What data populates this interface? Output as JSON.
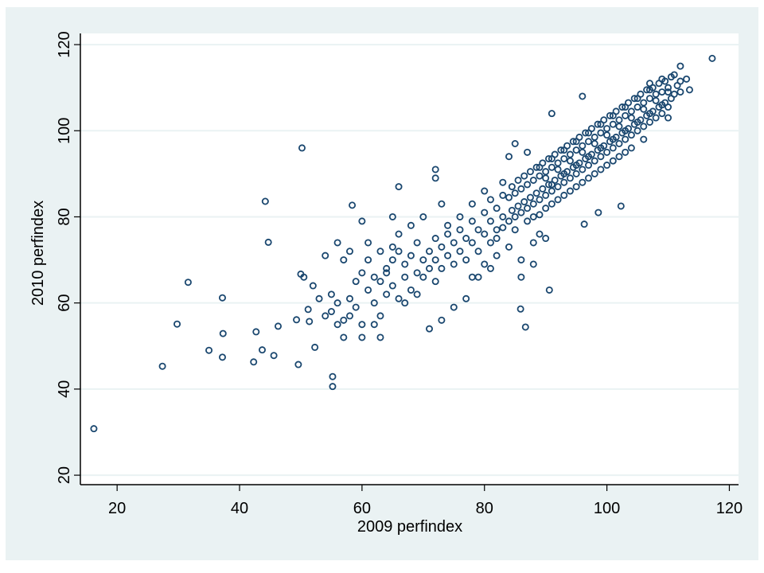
{
  "chart_data": {
    "type": "scatter",
    "title": "",
    "xlabel": "2009 perfindex",
    "ylabel": "2010 perfindex",
    "xlim": [
      14,
      121.5
    ],
    "ylim": [
      17.8,
      122.6
    ],
    "xticks": [
      20,
      40,
      60,
      80,
      100,
      120
    ],
    "yticks": [
      20,
      40,
      60,
      80,
      100,
      120
    ],
    "xtick_labels": [
      "20",
      "40",
      "60",
      "80",
      "100",
      "120"
    ],
    "ytick_labels": [
      "20",
      "40",
      "60",
      "80",
      "100",
      "120"
    ],
    "grid": "horizontal",
    "marker": "hollow-circle",
    "colors": {
      "marker": "#1a476f",
      "background": "#eaf2f3",
      "plot": "#ffffff",
      "grid": "#eaf2f3"
    },
    "points": [
      [
        16.2,
        30.8
      ],
      [
        27.4,
        45.3
      ],
      [
        31.6,
        64.8
      ],
      [
        29.8,
        55.1
      ],
      [
        35.0,
        49.0
      ],
      [
        37.2,
        61.2
      ],
      [
        37.3,
        52.9
      ],
      [
        37.2,
        47.4
      ],
      [
        42.7,
        53.3
      ],
      [
        42.3,
        46.3
      ],
      [
        43.7,
        49.1
      ],
      [
        44.2,
        83.6
      ],
      [
        44.7,
        74.1
      ],
      [
        45.6,
        47.8
      ],
      [
        46.3,
        54.6
      ],
      [
        50.2,
        96.0
      ],
      [
        49.6,
        45.7
      ],
      [
        49.3,
        56.1
      ],
      [
        50.0,
        66.7
      ],
      [
        50.5,
        66.0
      ],
      [
        51.2,
        58.5
      ],
      [
        51.4,
        55.7
      ],
      [
        52.3,
        49.7
      ],
      [
        55.2,
        42.9
      ],
      [
        55.2,
        40.6
      ],
      [
        58.4,
        82.7
      ],
      [
        117.2,
        116.8
      ],
      [
        85.9,
        58.6
      ],
      [
        86.7,
        54.4
      ],
      [
        90.6,
        63.0
      ],
      [
        98.6,
        81.0
      ],
      [
        102.3,
        82.5
      ],
      [
        96.3,
        78.3
      ],
      [
        60,
        67
      ],
      [
        61,
        63
      ],
      [
        62,
        66
      ],
      [
        62,
        60
      ],
      [
        63,
        65
      ],
      [
        64,
        68
      ],
      [
        64,
        62
      ],
      [
        65,
        70
      ],
      [
        65,
        64
      ],
      [
        66,
        61
      ],
      [
        66,
        72
      ],
      [
        67,
        66
      ],
      [
        67,
        69
      ],
      [
        68,
        63
      ],
      [
        68,
        71
      ],
      [
        69,
        67
      ],
      [
        69,
        74
      ],
      [
        70,
        70
      ],
      [
        70,
        66
      ],
      [
        71,
        72
      ],
      [
        71,
        68
      ],
      [
        72,
        75
      ],
      [
        72,
        70
      ],
      [
        72,
        65
      ],
      [
        73,
        73
      ],
      [
        73,
        68
      ],
      [
        74,
        76
      ],
      [
        74,
        71
      ],
      [
        74,
        78
      ],
      [
        75,
        74
      ],
      [
        75,
        69
      ],
      [
        76,
        77
      ],
      [
        76,
        72
      ],
      [
        76,
        80
      ],
      [
        77,
        75
      ],
      [
        77,
        70
      ],
      [
        78,
        79
      ],
      [
        78,
        74
      ],
      [
        78,
        83
      ],
      [
        79,
        77
      ],
      [
        79,
        72
      ],
      [
        80,
        81
      ],
      [
        80,
        76
      ],
      [
        80,
        86
      ],
      [
        81,
        79
      ],
      [
        81,
        84
      ],
      [
        82,
        82
      ],
      [
        82,
        77
      ],
      [
        83,
        85
      ],
      [
        83,
        80
      ],
      [
        83,
        88
      ],
      [
        73,
        83
      ],
      [
        72,
        91
      ],
      [
        72,
        89
      ],
      [
        66,
        87
      ],
      [
        65,
        80
      ],
      [
        60,
        79
      ],
      [
        61,
        74
      ],
      [
        58,
        72
      ],
      [
        57,
        70
      ],
      [
        58,
        61
      ],
      [
        57,
        56
      ],
      [
        55,
        58
      ],
      [
        54,
        71
      ],
      [
        56,
        74
      ],
      [
        59,
        59
      ],
      [
        60,
        55
      ],
      [
        60,
        52
      ],
      [
        63,
        52
      ],
      [
        62,
        55
      ],
      [
        63,
        57
      ],
      [
        64,
        67
      ],
      [
        67,
        60
      ],
      [
        69,
        62
      ],
      [
        71,
        54
      ],
      [
        73,
        56
      ],
      [
        75,
        59
      ],
      [
        77,
        61
      ],
      [
        78,
        66
      ],
      [
        79,
        66
      ],
      [
        80,
        69
      ],
      [
        81,
        68
      ],
      [
        82,
        71
      ],
      [
        84,
        73
      ],
      [
        86,
        66
      ],
      [
        86,
        70
      ],
      [
        88,
        69
      ],
      [
        88,
        74
      ],
      [
        89,
        76
      ],
      [
        90,
        75
      ],
      [
        84,
        94
      ],
      [
        85,
        97
      ],
      [
        87,
        95
      ],
      [
        91,
        104
      ],
      [
        96,
        108
      ],
      [
        57,
        52
      ],
      [
        58,
        57
      ],
      [
        56,
        60
      ],
      [
        59,
        65
      ],
      [
        61,
        70
      ],
      [
        63,
        72
      ],
      [
        65,
        73
      ],
      [
        66,
        76
      ],
      [
        68,
        78
      ],
      [
        70,
        80
      ],
      [
        53,
        61
      ],
      [
        54,
        57
      ],
      [
        56,
        55
      ],
      [
        52,
        64
      ],
      [
        55,
        62
      ],
      [
        112,
        115
      ],
      [
        111,
        113
      ],
      [
        113,
        112
      ],
      [
        113.5,
        109.5
      ],
      [
        110,
        103
      ],
      [
        84,
        79
      ],
      [
        84.5,
        81.5
      ],
      [
        84,
        84.5
      ],
      [
        84.5,
        87
      ],
      [
        85,
        80
      ],
      [
        85.5,
        82.5
      ],
      [
        85,
        85.5
      ],
      [
        85.5,
        88.5
      ],
      [
        86,
        81
      ],
      [
        86.5,
        83.5
      ],
      [
        86,
        86.5
      ],
      [
        86.5,
        89.5
      ],
      [
        87,
        82
      ],
      [
        87.5,
        84.5
      ],
      [
        87,
        87.5
      ],
      [
        87.5,
        90.5
      ],
      [
        88,
        83
      ],
      [
        88.5,
        85.5
      ],
      [
        88,
        88.5
      ],
      [
        88.5,
        91.5
      ],
      [
        89,
        84
      ],
      [
        89.5,
        86.5
      ],
      [
        89,
        89.5
      ],
      [
        89.5,
        92.5
      ],
      [
        90,
        85
      ],
      [
        90.5,
        87.5
      ],
      [
        90,
        90.5
      ],
      [
        90.5,
        93.5
      ],
      [
        91,
        86
      ],
      [
        91.5,
        88.5
      ],
      [
        91,
        91.5
      ],
      [
        91.5,
        94.5
      ],
      [
        92,
        87
      ],
      [
        92.5,
        89.5
      ],
      [
        92,
        92.5
      ],
      [
        92.5,
        95.5
      ],
      [
        93,
        88
      ],
      [
        93.5,
        90.5
      ],
      [
        93,
        93.5
      ],
      [
        93.5,
        96.5
      ],
      [
        94,
        89
      ],
      [
        94.5,
        91.5
      ],
      [
        94,
        94.5
      ],
      [
        94.5,
        97.5
      ],
      [
        95,
        90
      ],
      [
        95.5,
        92.5
      ],
      [
        95,
        95.5
      ],
      [
        95.5,
        98.5
      ],
      [
        96,
        91
      ],
      [
        96.5,
        93.5
      ],
      [
        96,
        96.5
      ],
      [
        96.5,
        99.5
      ],
      [
        97,
        92
      ],
      [
        97.5,
        94.5
      ],
      [
        97,
        97.5
      ],
      [
        97.5,
        100.5
      ],
      [
        98,
        93
      ],
      [
        98.5,
        95.5
      ],
      [
        98,
        98.5
      ],
      [
        98.5,
        101.5
      ],
      [
        99,
        94
      ],
      [
        99.5,
        96.5
      ],
      [
        99,
        99.5
      ],
      [
        99.5,
        102.5
      ],
      [
        100,
        95
      ],
      [
        100.5,
        97.5
      ],
      [
        100,
        100.5
      ],
      [
        100.5,
        103.5
      ],
      [
        101,
        96
      ],
      [
        101.5,
        98.5
      ],
      [
        101,
        101.5
      ],
      [
        101.5,
        104.5
      ],
      [
        102,
        97
      ],
      [
        102.5,
        99.5
      ],
      [
        102,
        102.5
      ],
      [
        102.5,
        105.5
      ],
      [
        103,
        98
      ],
      [
        103.5,
        100.5
      ],
      [
        103,
        103.5
      ],
      [
        103.5,
        106.5
      ],
      [
        104,
        99
      ],
      [
        104.5,
        101.5
      ],
      [
        104,
        104.5
      ],
      [
        104.5,
        107.5
      ],
      [
        105,
        100
      ],
      [
        105.5,
        102.5
      ],
      [
        105,
        105.5
      ],
      [
        105.5,
        108.5
      ],
      [
        106,
        101
      ],
      [
        106.5,
        103.5
      ],
      [
        106,
        106.5
      ],
      [
        106.5,
        109.5
      ],
      [
        107,
        102
      ],
      [
        107.5,
        104.5
      ],
      [
        107,
        107.5
      ],
      [
        107.5,
        110
      ],
      [
        108,
        103
      ],
      [
        108.5,
        105.5
      ],
      [
        108,
        108.5
      ],
      [
        108.5,
        111
      ],
      [
        109,
        104
      ],
      [
        109.5,
        106.5
      ],
      [
        109,
        109
      ],
      [
        109.5,
        111.5
      ],
      [
        110,
        105.5
      ],
      [
        110.5,
        107.5
      ],
      [
        110,
        110
      ],
      [
        111,
        108.5
      ],
      [
        111.5,
        110.5
      ],
      [
        112,
        109
      ],
      [
        112,
        111.5
      ],
      [
        110.5,
        112.5
      ],
      [
        109,
        112
      ],
      [
        107,
        111
      ],
      [
        90,
        89
      ],
      [
        92,
        91
      ],
      [
        94,
        93
      ],
      [
        96,
        95
      ],
      [
        98,
        97
      ],
      [
        100,
        99
      ],
      [
        102,
        101
      ],
      [
        104,
        103
      ],
      [
        106,
        105
      ],
      [
        108,
        107
      ],
      [
        110,
        109
      ],
      [
        91,
        87.5
      ],
      [
        93,
        90
      ],
      [
        95,
        92
      ],
      [
        97,
        94
      ],
      [
        99,
        96
      ],
      [
        101,
        98
      ],
      [
        103,
        100
      ],
      [
        105,
        102
      ],
      [
        107,
        104
      ],
      [
        109,
        106
      ],
      [
        89,
        91.5
      ],
      [
        91,
        93.5
      ],
      [
        93,
        95.5
      ],
      [
        95,
        97.5
      ],
      [
        97,
        99.5
      ],
      [
        99,
        101.5
      ],
      [
        101,
        103.5
      ],
      [
        103,
        105.5
      ],
      [
        105,
        107.5
      ],
      [
        107,
        109.5
      ],
      [
        88,
        80
      ],
      [
        90,
        82
      ],
      [
        92,
        84
      ],
      [
        94,
        86
      ],
      [
        96,
        88
      ],
      [
        98,
        90
      ],
      [
        100,
        92
      ],
      [
        102,
        94
      ],
      [
        104,
        96
      ],
      [
        106,
        98
      ],
      [
        82,
        75
      ],
      [
        83,
        77.5
      ],
      [
        81,
        74
      ],
      [
        85,
        77
      ],
      [
        87,
        79
      ],
      [
        89,
        80.5
      ],
      [
        91,
        83
      ],
      [
        93,
        85
      ],
      [
        95,
        87
      ],
      [
        97,
        89
      ],
      [
        99,
        91
      ],
      [
        101,
        93
      ],
      [
        103,
        95
      ]
    ]
  }
}
